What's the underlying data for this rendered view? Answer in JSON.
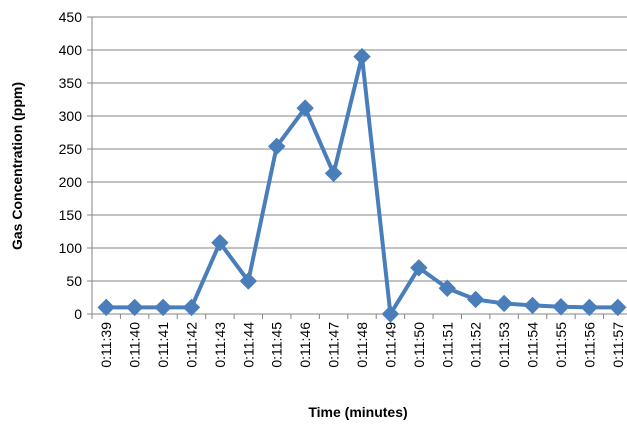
{
  "chart_data": {
    "type": "line",
    "title": "",
    "xlabel": "Time (minutes)",
    "ylabel": "Gas Concentration (ppm)",
    "ylim": [
      0,
      450
    ],
    "yticks": [
      "0",
      "50",
      "100",
      "150",
      "200",
      "250",
      "300",
      "350",
      "400",
      "450"
    ],
    "grid": true,
    "legend": "none",
    "categories": [
      "0:11:39",
      "0:11:40",
      "0:11:41",
      "0:11:42",
      "0:11:43",
      "0:11:44",
      "0:11:45",
      "0:11:46",
      "0:11:47",
      "0:11:48",
      "0:11:49",
      "0:11:50",
      "0:11:51",
      "0:11:52",
      "0:11:53",
      "0:11:54",
      "0:11:55",
      "0:11:56",
      "0:11:57"
    ],
    "series": [
      {
        "color": "#4a7ebb",
        "values": [
          10,
          10,
          10,
          10,
          108,
          50,
          254,
          312,
          213,
          390,
          0,
          70,
          39,
          22,
          16,
          13,
          11,
          10,
          10
        ]
      }
    ]
  }
}
